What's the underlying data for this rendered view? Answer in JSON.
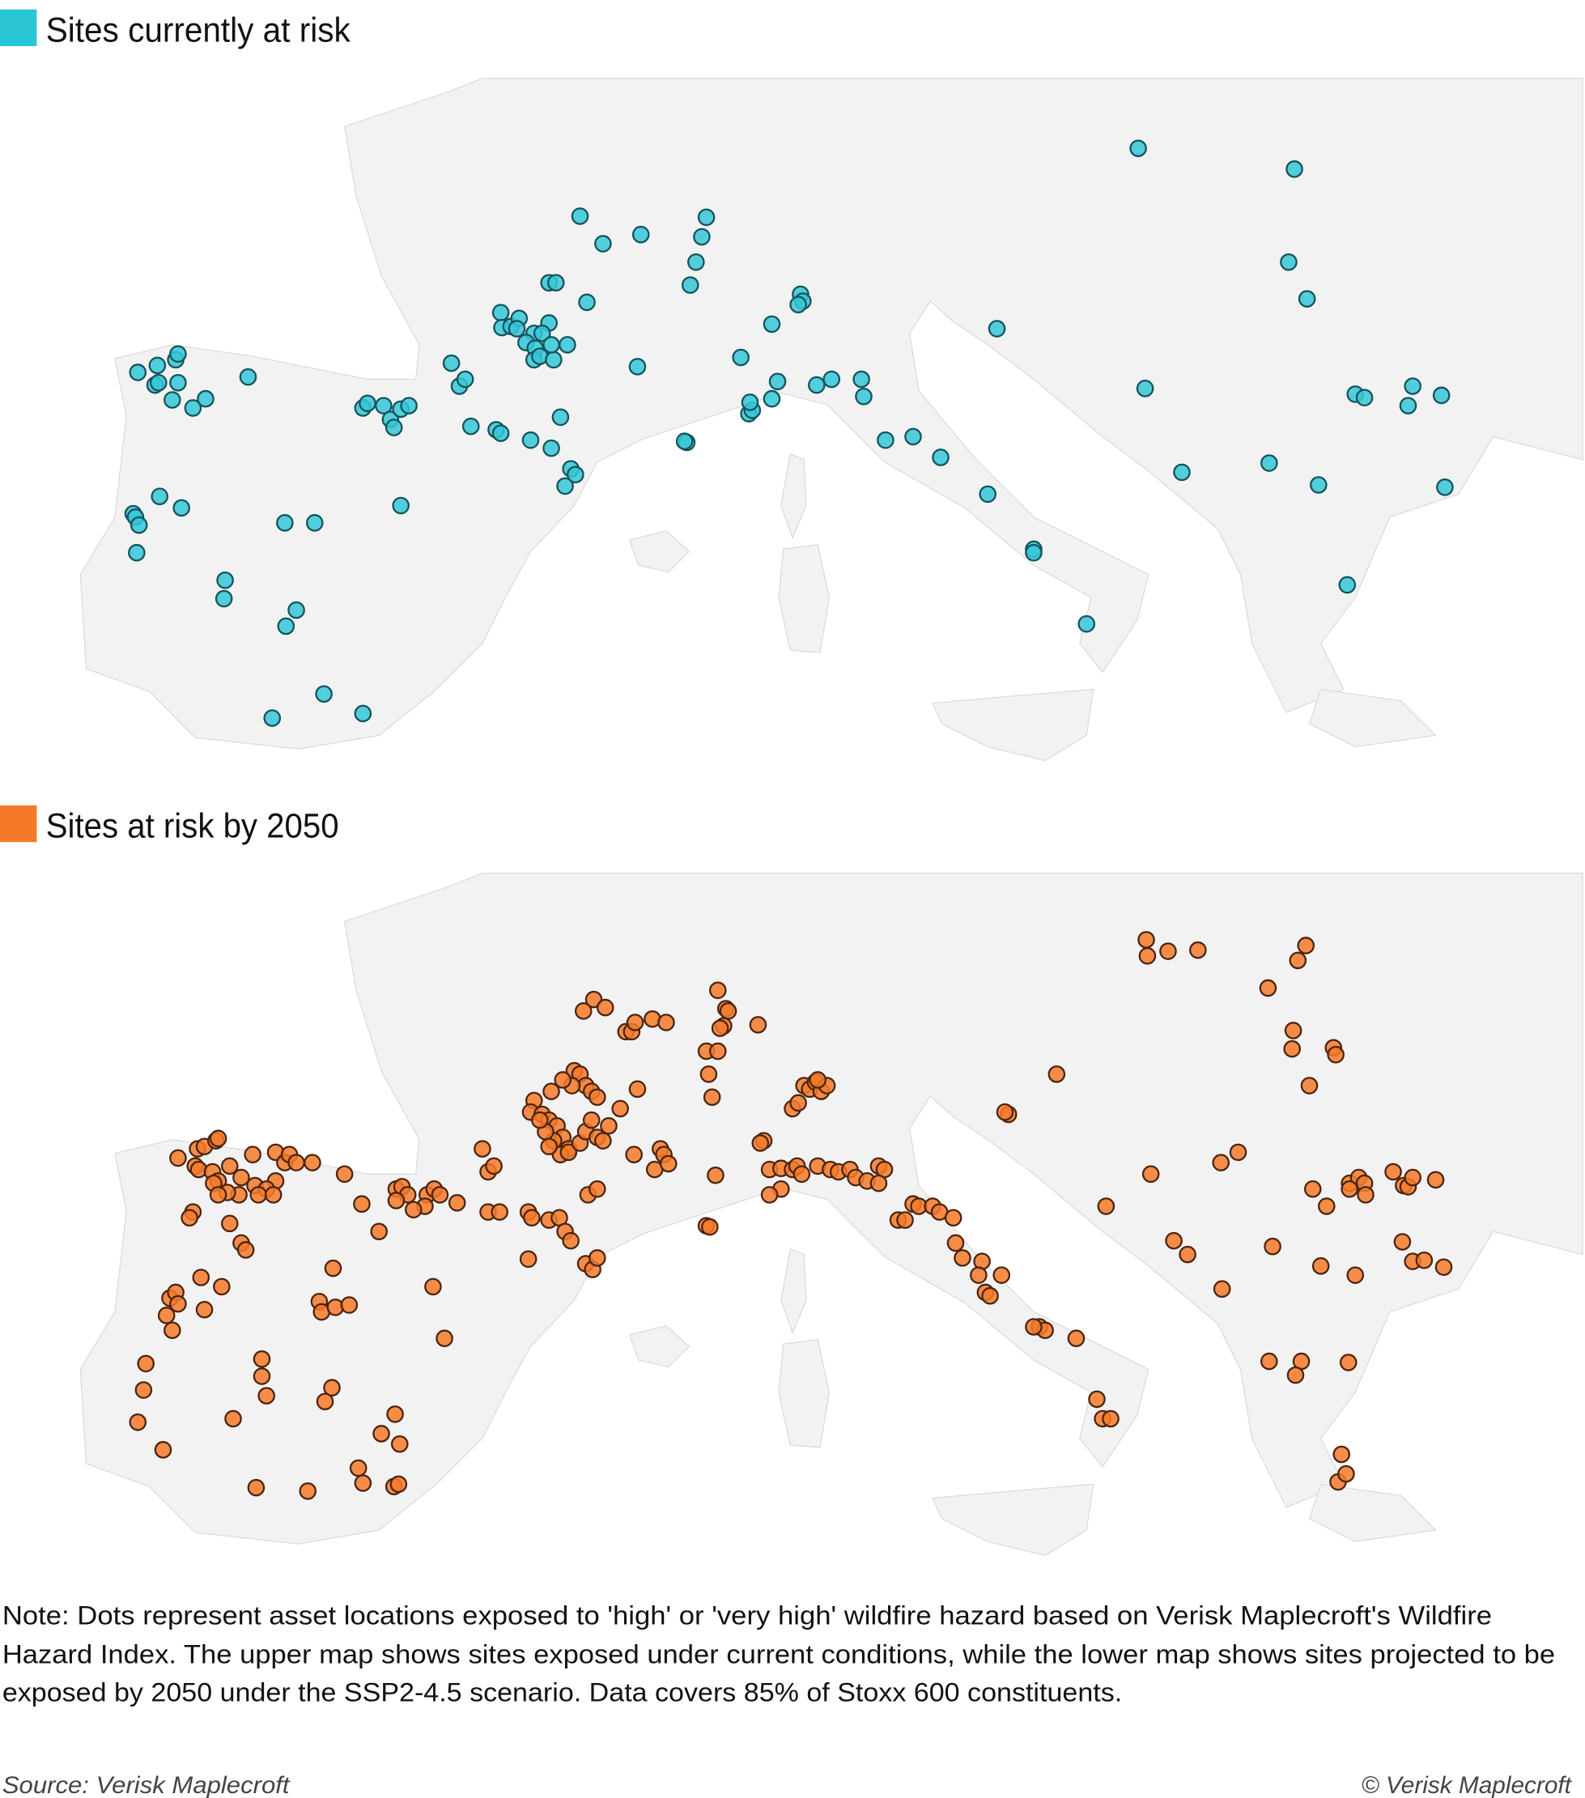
{
  "legend_current": "Sites currently at risk",
  "legend_future": "Sites at risk by 2050",
  "note": [
    "Note: Dots represent asset locations exposed to 'high' or 'very high' wildfire hazard based on Verisk Maplecroft's Wildfire",
    "Hazard Index. The upper map shows sites exposed under current conditions, while the lower map shows sites projected to be",
    "exposed by 2050 under the SSP2-4.5 scenario. Data covers 85% of Stoxx 600 constituents."
  ],
  "source": "Source: Verisk Maplecroft",
  "copyright": "© Verisk Maplecroft"
}
